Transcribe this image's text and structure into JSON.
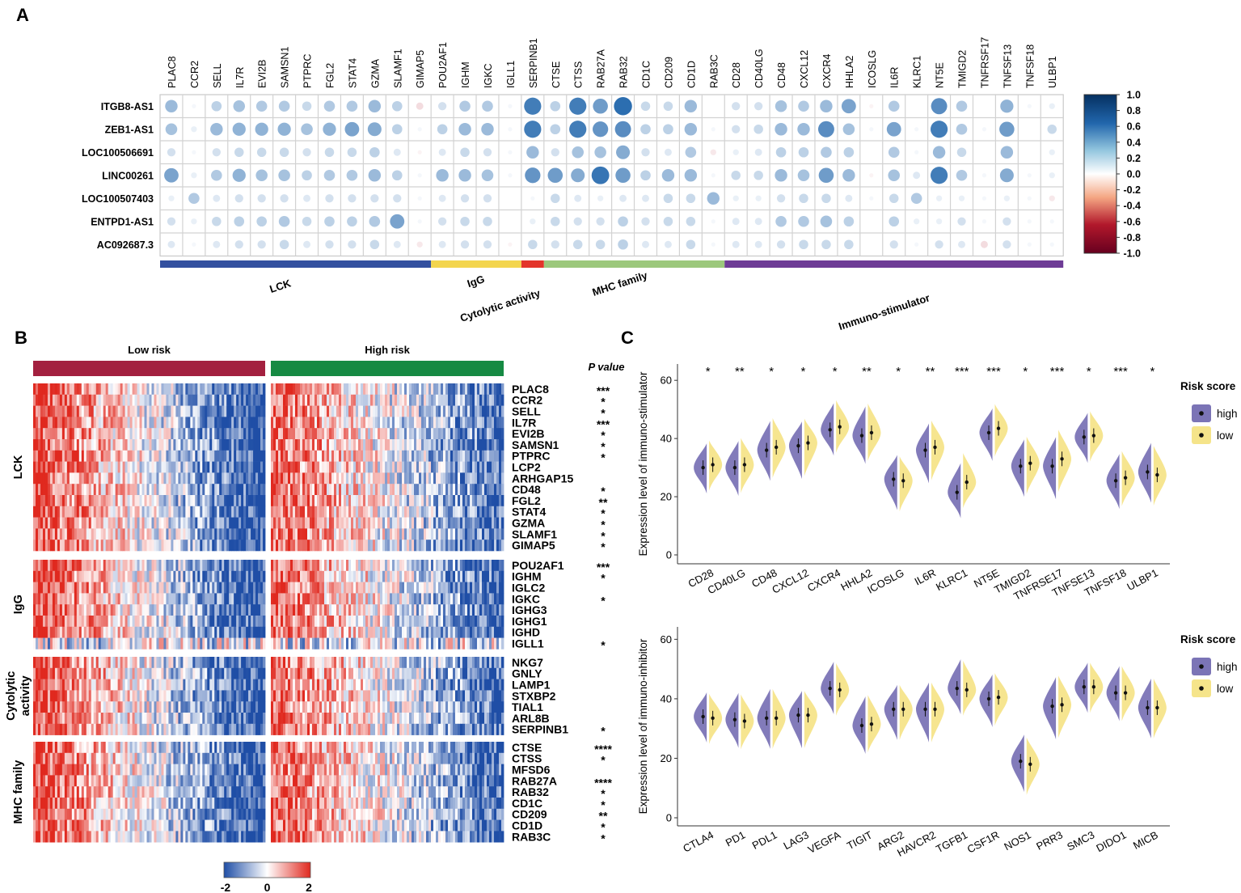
{
  "panel_labels": {
    "a": "A",
    "b": "B",
    "c": "C"
  },
  "colors": {
    "blue": "#2166ac",
    "red": "#b2182b",
    "white": "#ffffff",
    "purple": "#7b74b6",
    "yellow": "#f5e48a",
    "band_lck": "#33509f",
    "band_igg": "#f3d54e",
    "band_cyto": "#e3352b",
    "band_mhc": "#9cc87c",
    "band_immuno": "#6e3c96",
    "low_risk_bar": "#a3203f",
    "high_risk_bar": "#168a43"
  },
  "chart_data": [
    {
      "type": "heatmap",
      "id": "A",
      "subtype": "correlation-dot",
      "columns": [
        "PLAC8",
        "CCR2",
        "SELL",
        "IL7R",
        "EVI2B",
        "SAMSN1",
        "PTPRC",
        "FGL2",
        "STAT4",
        "GZMA",
        "SLAMF1",
        "GIMAP5",
        "POU2AF1",
        "IGHM",
        "IGKC",
        "IGLL1",
        "SERPINB1",
        "CTSE",
        "CTSS",
        "RAB27A",
        "RAB32",
        "CD1C",
        "CD209",
        "CD1D",
        "RAB3C",
        "CD28",
        "CD40LG",
        "CD48",
        "CXCL12",
        "CXCR4",
        "HHLA2",
        "ICOSLG",
        "IL6R",
        "KLRC1",
        "NT5E",
        "TMIGD2",
        "TNFRSF17",
        "TNFSF13",
        "TNFSF18",
        "ULBP1"
      ],
      "rows": [
        "ITGB8-AS1",
        "ZEB1-AS1",
        "LOC100506691",
        "LINC00261",
        "LOC100507403",
        "ENTPD1-AS1",
        "AC092687.3"
      ],
      "values": [
        [
          0.45,
          0.05,
          0.3,
          0.4,
          0.35,
          0.35,
          0.25,
          0.35,
          0.35,
          0.45,
          0.3,
          -0.15,
          0.2,
          0.35,
          0.35,
          0.05,
          0.85,
          0.3,
          0.85,
          0.65,
          0.95,
          0.25,
          0.25,
          0.45,
          0.0,
          0.2,
          0.2,
          0.4,
          0.35,
          0.45,
          0.6,
          -0.05,
          0.35,
          0.0,
          0.75,
          0.35,
          0.0,
          0.5,
          0.05,
          0.1
        ],
        [
          0.4,
          0.1,
          0.45,
          0.5,
          0.5,
          0.5,
          0.4,
          0.5,
          0.6,
          0.55,
          0.3,
          0.05,
          0.3,
          0.45,
          0.45,
          0.05,
          0.85,
          0.3,
          0.85,
          0.7,
          0.75,
          0.3,
          0.3,
          0.45,
          0.05,
          0.2,
          0.25,
          0.45,
          0.45,
          0.75,
          0.4,
          0.05,
          0.6,
          0.05,
          0.85,
          0.35,
          0.05,
          0.65,
          0.0,
          0.25
        ],
        [
          0.2,
          0.05,
          0.2,
          0.25,
          0.25,
          0.25,
          0.2,
          0.25,
          0.25,
          0.3,
          0.15,
          -0.05,
          0.15,
          0.25,
          0.2,
          0.05,
          0.45,
          0.2,
          0.4,
          0.4,
          0.55,
          0.2,
          0.15,
          0.35,
          -0.1,
          0.1,
          0.15,
          0.3,
          0.3,
          0.35,
          0.3,
          0.0,
          0.35,
          0.05,
          0.45,
          0.25,
          0.0,
          0.45,
          0.0,
          0.1
        ],
        [
          0.6,
          0.1,
          0.35,
          0.5,
          0.4,
          0.4,
          0.3,
          0.35,
          0.35,
          0.45,
          0.3,
          0.05,
          0.45,
          0.45,
          0.4,
          0.05,
          0.7,
          0.65,
          0.55,
          0.9,
          0.65,
          0.3,
          0.45,
          0.45,
          0.05,
          0.25,
          0.25,
          0.45,
          0.4,
          0.65,
          0.45,
          -0.05,
          0.4,
          0.15,
          0.85,
          0.35,
          0.05,
          0.55,
          0.05,
          0.1
        ],
        [
          0.1,
          0.35,
          0.15,
          0.2,
          0.2,
          0.2,
          0.15,
          0.2,
          0.2,
          0.2,
          0.2,
          0.05,
          0.15,
          0.2,
          0.2,
          0.0,
          0.05,
          0.25,
          0.15,
          0.1,
          0.15,
          0.15,
          0.25,
          0.25,
          0.45,
          0.1,
          0.1,
          0.2,
          0.25,
          0.25,
          0.15,
          0.05,
          0.25,
          0.35,
          0.1,
          0.1,
          0.05,
          0.1,
          0.05,
          -0.1
        ],
        [
          0.2,
          0.1,
          0.25,
          0.3,
          0.3,
          0.35,
          0.25,
          0.3,
          0.3,
          0.35,
          0.6,
          0.05,
          0.2,
          0.25,
          0.25,
          0.0,
          0.1,
          0.25,
          0.2,
          0.2,
          0.3,
          0.2,
          0.25,
          0.25,
          0.05,
          0.15,
          0.15,
          0.35,
          0.35,
          0.4,
          0.3,
          0.0,
          0.3,
          0.1,
          0.1,
          0.2,
          0.05,
          0.2,
          0.05,
          0.05
        ],
        [
          0.15,
          0.05,
          0.15,
          0.2,
          0.2,
          0.25,
          0.15,
          0.2,
          0.2,
          0.25,
          0.15,
          -0.1,
          0.15,
          0.2,
          0.2,
          -0.05,
          0.25,
          0.2,
          0.25,
          0.25,
          0.3,
          0.15,
          0.15,
          0.25,
          0.05,
          0.15,
          0.15,
          0.2,
          0.25,
          0.25,
          0.25,
          0.0,
          0.2,
          0.05,
          0.2,
          0.15,
          -0.15,
          0.2,
          0.05,
          0.05
        ]
      ],
      "groups": [
        {
          "label": "LCK",
          "from": 0,
          "to": 11
        },
        {
          "label": "IgG",
          "from": 12,
          "to": 15
        },
        {
          "label": "Cytolytic activity",
          "from": 16,
          "to": 16
        },
        {
          "label": "MHC family",
          "from": 17,
          "to": 24
        },
        {
          "label": "Immuno-stimulator",
          "from": 25,
          "to": 39
        }
      ],
      "colorbar": {
        "ticks": [
          "1.0",
          "0.8",
          "0.6",
          "0.4",
          "0.2",
          "0.0",
          "-0.2",
          "-0.4",
          "-0.6",
          "-0.8",
          "-1.0"
        ],
        "range": [
          -1,
          1
        ]
      }
    },
    {
      "type": "heatmap",
      "id": "B",
      "title_low": "Low risk",
      "title_high": "High risk",
      "pvalue_header": "P value",
      "groups": [
        {
          "label": "LCK",
          "genes": [
            "PLAC8",
            "CCR2",
            "SELL",
            "IL7R",
            "EVI2B",
            "SAMSN1",
            "PTPRC",
            "LCP2",
            "ARHGAP15",
            "CD48",
            "FGL2",
            "STAT4",
            "GZMA",
            "SLAMF1",
            "GIMAP5"
          ],
          "pvalues": [
            "***",
            "*",
            "*",
            "***",
            "*",
            "*",
            "*",
            "",
            "",
            "*",
            "**",
            "*",
            "*",
            "*",
            "*"
          ]
        },
        {
          "label": "IgG",
          "genes": [
            "POU2AF1",
            "IGHM",
            "IGLC2",
            "IGKC",
            "IGHG3",
            "IGHG1",
            "IGHD",
            "IGLL1"
          ],
          "pvalues": [
            "***",
            "*",
            "",
            "*",
            "",
            "",
            "",
            "*"
          ]
        },
        {
          "label": "Cytolytic activity",
          "genes": [
            "NKG7",
            "GNLY",
            "LAMP1",
            "STXBP2",
            "TIAL1",
            "ARL8B",
            "SERPINB1"
          ],
          "pvalues": [
            "",
            "",
            "",
            "",
            "",
            "",
            "*"
          ]
        },
        {
          "label": "MHC family",
          "genes": [
            "CTSE",
            "CTSS",
            "MFSD6",
            "RAB27A",
            "RAB32",
            "CD1C",
            "CD209",
            "CD1D",
            "RAB3C"
          ],
          "pvalues": [
            "****",
            "*",
            "",
            "****",
            "*",
            "*",
            "**",
            "*",
            "*"
          ]
        }
      ],
      "colorbar": {
        "ticks": [
          "-2",
          "0",
          "2"
        ],
        "range": [
          -2,
          2
        ]
      }
    },
    {
      "type": "violin",
      "id": "C-top",
      "ylabel": "Expression level of immuno-stimulator",
      "yticks": [
        "60",
        "40",
        "20",
        "0"
      ],
      "ylim": [
        0,
        62
      ],
      "legend_title": "Risk score",
      "legend": [
        "high",
        "low"
      ],
      "categories": [
        "CD28",
        "CD40LG",
        "CD48",
        "CXCL12",
        "CXCR4",
        "HHLA2",
        "ICOSLG",
        "IL6R",
        "KLRC1",
        "NT5E",
        "TMIGD2",
        "TNFRSE17",
        "TNFSE13",
        "TNFSF18",
        "ULBP1"
      ],
      "significance": [
        "*",
        "**",
        "*",
        "*",
        "*",
        "**",
        "*",
        "**",
        "***",
        "***",
        "*",
        "***",
        "*",
        "***",
        "*"
      ],
      "series": [
        {
          "name": "high",
          "values": [
            30,
            30,
            36,
            37.5,
            43,
            41,
            26,
            36,
            21.5,
            42,
            30.5,
            30.5,
            40.5,
            25.5,
            28.5
          ]
        },
        {
          "name": "low",
          "values": [
            31,
            31,
            37,
            38.5,
            44,
            42,
            25.5,
            37,
            25,
            43.5,
            31.5,
            33,
            41,
            26.5,
            27.5
          ]
        }
      ]
    },
    {
      "type": "violin",
      "id": "C-bottom",
      "ylabel": "Expression level of immuno-inhibitor",
      "yticks": [
        "60",
        "40",
        "20",
        "0"
      ],
      "ylim": [
        0,
        62
      ],
      "legend_title": "Risk score",
      "legend": [
        "high",
        "low"
      ],
      "categories": [
        "CTLA4",
        "PD1",
        "PDL1",
        "LAG3",
        "VEGFA",
        "TIGIT",
        "ARG2",
        "HAVCR2",
        "TGFB1",
        "CSF1R",
        "NOS1",
        "PRR3",
        "SMC3",
        "DIDO1",
        "MICB"
      ],
      "significance": [
        "",
        "",
        "",
        "",
        "",
        "",
        "",
        "",
        "",
        "",
        "",
        "",
        "",
        "",
        ""
      ],
      "series": [
        {
          "name": "high",
          "values": [
            34,
            33,
            33.5,
            34.5,
            43.5,
            31,
            36.5,
            36.5,
            43.5,
            40,
            19,
            37.5,
            44,
            42,
            37
          ]
        },
        {
          "name": "low",
          "values": [
            33.5,
            32.5,
            33.5,
            34.5,
            43,
            31.5,
            36.5,
            36.5,
            43,
            40.5,
            18,
            38,
            44,
            42,
            37
          ]
        }
      ]
    }
  ]
}
